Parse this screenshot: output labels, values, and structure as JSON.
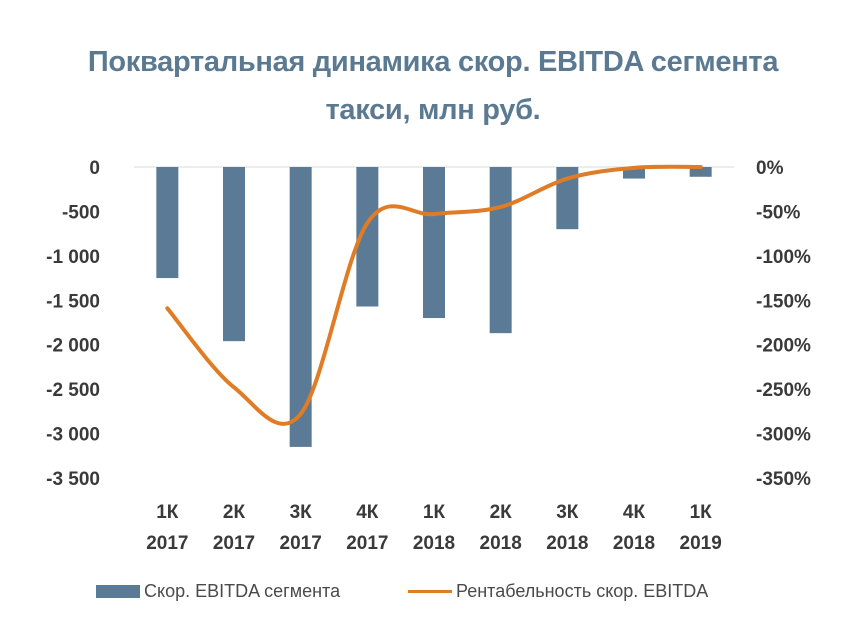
{
  "title_lines": [
    "Поквартальная динамика скор. EBITDA сегмента",
    "такси, млн руб."
  ],
  "colors": {
    "bar": "#5a7a95",
    "line": "#e07b26",
    "title": "#5b7a92"
  },
  "legend": {
    "bar_label": "Скор. EBITDA сегмента",
    "line_label": "Рентабельность скор. EBITDA"
  },
  "chart_data": {
    "type": "bar+line",
    "title": "Поквартальная динамика скор. EBITDA сегмента такси, млн руб.",
    "categories": [
      [
        "1К",
        "2017"
      ],
      [
        "2К",
        "2017"
      ],
      [
        "3К",
        "2017"
      ],
      [
        "4К",
        "2017"
      ],
      [
        "1К",
        "2018"
      ],
      [
        "2К",
        "2018"
      ],
      [
        "3К",
        "2018"
      ],
      [
        "4К",
        "2018"
      ],
      [
        "1К",
        "2019"
      ]
    ],
    "y_left": {
      "min": -3500,
      "max": 0,
      "ticks": [
        "0",
        "-500",
        "-1 000",
        "-1 500",
        "-2 000",
        "-2 500",
        "-3 000",
        "-3 500"
      ]
    },
    "y_right": {
      "min": -350,
      "max": 0,
      "ticks": [
        "0%",
        "-50%",
        "-100%",
        "-150%",
        "-200%",
        "-250%",
        "-300%",
        "-350%"
      ]
    },
    "series": [
      {
        "name": "Скор. EBITDA сегмента",
        "type": "bar",
        "axis": "left",
        "values": [
          -1250,
          -1960,
          -3150,
          -1570,
          -1700,
          -1870,
          -700,
          -130,
          -110
        ]
      },
      {
        "name": "Рентабельность скор. EBITDA",
        "type": "line",
        "axis": "right",
        "smooth": true,
        "values": [
          -159,
          -248,
          -278,
          -63,
          -53,
          -45,
          -13,
          -1,
          0
        ]
      }
    ],
    "grid": false,
    "legend_position": "bottom"
  }
}
